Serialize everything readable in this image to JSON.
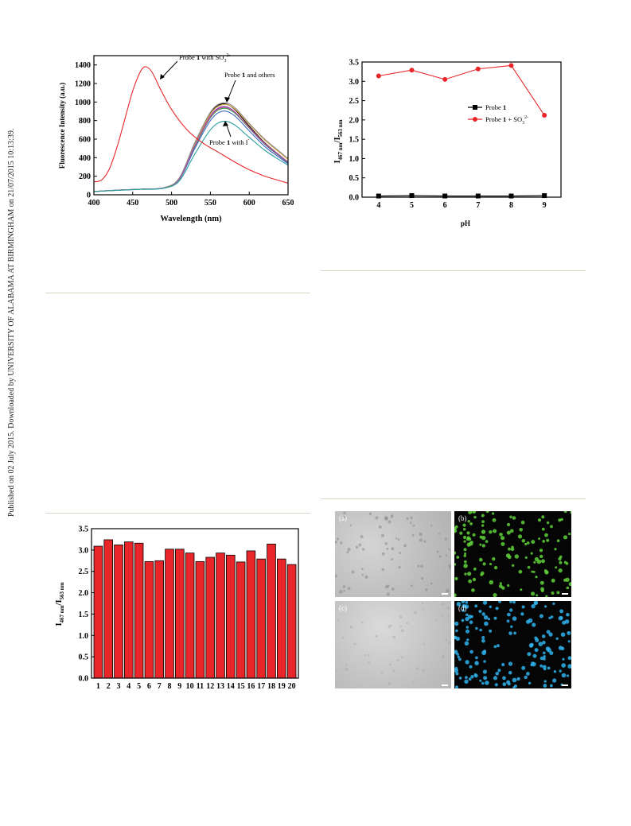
{
  "side_note": "Published on 02 July 2015. Downloaded by UNIVERSITY OF ALABAMA AT BIRMINGHAM on 21/07/2015 10:13:39.",
  "colors": {
    "red": "#e8262a",
    "black": "#000000",
    "rule": "#d8d6c6",
    "green": "#4cbf2e",
    "blue": "#22a8e0"
  },
  "chart_data": [
    {
      "type": "line",
      "title": "",
      "xlabel": "Wavelength (nm)",
      "ylabel": "Fluorescence Intensity (a.u.)",
      "xlim": [
        400,
        650
      ],
      "ylim": [
        0,
        1500
      ],
      "xticks": [
        400,
        450,
        500,
        550,
        600,
        650
      ],
      "yticks": [
        0,
        200,
        400,
        600,
        800,
        1000,
        1200,
        1400
      ],
      "annotations": [
        {
          "text": "Probe 1 with SO3 2-"
        },
        {
          "text": "Probe 1 and others"
        },
        {
          "text": "Probe 1 with I-"
        }
      ],
      "series": [
        {
          "color": "#e8262a",
          "x": [
            400,
            410,
            420,
            430,
            440,
            450,
            460,
            467,
            475,
            485,
            500,
            520,
            540,
            560,
            580,
            600,
            620,
            640,
            650
          ],
          "y": [
            140,
            160,
            280,
            520,
            820,
            1120,
            1330,
            1380,
            1320,
            1150,
            920,
            700,
            560,
            460,
            360,
            270,
            200,
            150,
            125
          ]
        },
        {
          "color": "#000000",
          "x": [
            400,
            430,
            460,
            490,
            510,
            530,
            550,
            565,
            580,
            600,
            620,
            640,
            650
          ],
          "y": [
            35,
            50,
            60,
            75,
            180,
            560,
            880,
            980,
            930,
            740,
            560,
            420,
            350
          ]
        },
        {
          "color": "#7a3fbf",
          "x": [
            400,
            430,
            460,
            490,
            510,
            530,
            550,
            565,
            580,
            600,
            620,
            640,
            650
          ],
          "y": [
            35,
            50,
            60,
            75,
            175,
            540,
            850,
            950,
            905,
            720,
            545,
            410,
            345
          ]
        },
        {
          "color": "#2f9c3f",
          "x": [
            400,
            430,
            460,
            490,
            510,
            530,
            550,
            565,
            580,
            600,
            620,
            640,
            650
          ],
          "y": [
            35,
            50,
            60,
            75,
            170,
            520,
            830,
            930,
            890,
            720,
            550,
            415,
            350
          ]
        },
        {
          "color": "#d9a43a",
          "x": [
            400,
            430,
            460,
            490,
            510,
            530,
            550,
            565,
            580,
            600,
            620,
            640,
            650
          ],
          "y": [
            35,
            50,
            60,
            75,
            178,
            550,
            870,
            970,
            935,
            760,
            590,
            450,
            380
          ]
        },
        {
          "color": "#3b67c4",
          "x": [
            400,
            430,
            460,
            490,
            510,
            530,
            550,
            565,
            580,
            600,
            620,
            640,
            650
          ],
          "y": [
            35,
            50,
            60,
            75,
            165,
            500,
            800,
            900,
            860,
            690,
            520,
            395,
            335
          ]
        },
        {
          "color": "#c44b9a",
          "x": [
            400,
            430,
            460,
            490,
            510,
            530,
            550,
            565,
            580,
            600,
            620,
            640,
            650
          ],
          "y": [
            35,
            50,
            60,
            75,
            172,
            530,
            840,
            940,
            900,
            725,
            555,
            420,
            355
          ]
        },
        {
          "color": "#8b8b8b",
          "x": [
            400,
            430,
            460,
            490,
            510,
            530,
            550,
            565,
            580,
            600,
            620,
            640,
            650
          ],
          "y": [
            35,
            50,
            60,
            75,
            182,
            560,
            890,
            990,
            950,
            770,
            600,
            460,
            390
          ]
        },
        {
          "color": "#2a9c9c",
          "x": [
            400,
            430,
            460,
            490,
            510,
            530,
            550,
            565,
            580,
            600,
            620,
            640,
            650
          ],
          "y": [
            35,
            48,
            58,
            70,
            150,
            440,
            700,
            790,
            760,
            620,
            480,
            370,
            320
          ]
        }
      ]
    },
    {
      "type": "line",
      "title": "",
      "xlabel": "pH",
      "ylabel": "I467 nm/I563 nm",
      "xlim": [
        3.5,
        9.5
      ],
      "ylim": [
        0,
        3.5
      ],
      "xticks": [
        4,
        5,
        6,
        7,
        8,
        9
      ],
      "yticks": [
        0.0,
        0.5,
        1.0,
        1.5,
        2.0,
        2.5,
        3.0,
        3.5
      ],
      "legend": "right",
      "series": [
        {
          "name": "Probe 1",
          "color": "#000000",
          "marker": "square",
          "x": [
            4,
            5,
            6,
            7,
            8,
            9
          ],
          "y": [
            0.03,
            0.04,
            0.03,
            0.03,
            0.03,
            0.04
          ]
        },
        {
          "name": "Probe 1 + SO3 2-",
          "color": "#e8262a",
          "marker": "circle",
          "x": [
            4,
            5,
            6,
            7,
            8,
            9
          ],
          "y": [
            3.14,
            3.29,
            3.05,
            3.32,
            3.41,
            2.12
          ]
        }
      ]
    },
    {
      "type": "bar",
      "title": "",
      "xlabel": "",
      "ylabel": "I467 nm/I563 nm",
      "ylim": [
        0,
        3.5
      ],
      "yticks": [
        0.0,
        0.5,
        1.0,
        1.5,
        2.0,
        2.5,
        3.0,
        3.5
      ],
      "categories": [
        "1",
        "2",
        "3",
        "4",
        "5",
        "6",
        "7",
        "8",
        "9",
        "10",
        "11",
        "12",
        "13",
        "14",
        "15",
        "16",
        "17",
        "18",
        "19",
        "20"
      ],
      "values": [
        3.09,
        3.24,
        3.12,
        3.19,
        3.16,
        2.73,
        2.75,
        3.02,
        3.02,
        2.93,
        2.73,
        2.83,
        2.93,
        2.88,
        2.72,
        2.98,
        2.79,
        3.14,
        2.79,
        2.66
      ],
      "color": "#e8262a"
    }
  ],
  "micrograph": {
    "panels": [
      {
        "label": "(a)",
        "kind": "brightfield"
      },
      {
        "label": "(b)",
        "kind": "green-fluorescence"
      },
      {
        "label": "(c)",
        "kind": "brightfield"
      },
      {
        "label": "(d)",
        "kind": "blue-fluorescence"
      }
    ]
  }
}
